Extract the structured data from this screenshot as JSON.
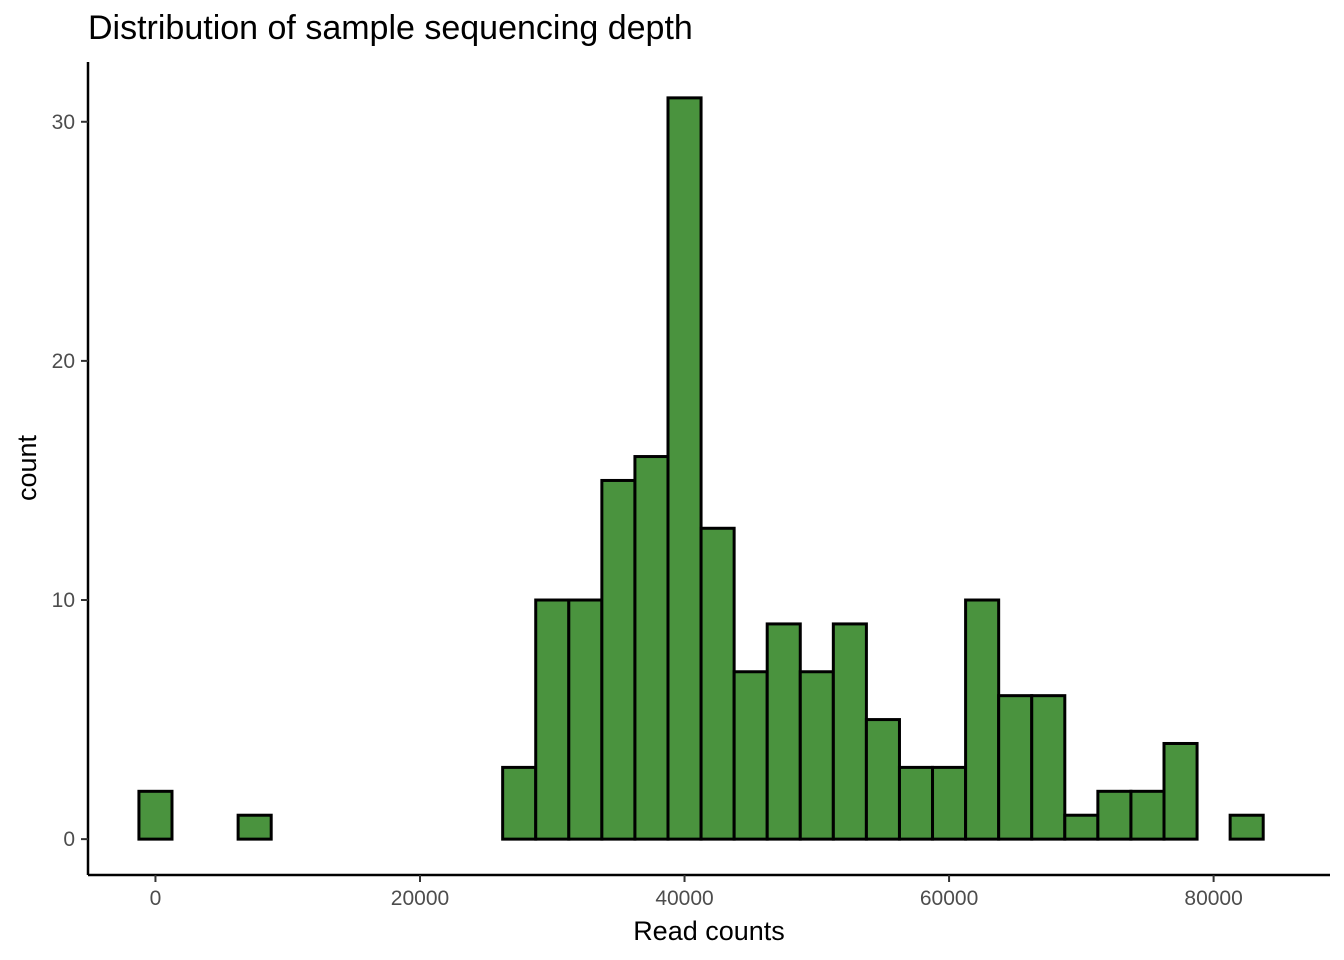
{
  "chart_data": {
    "type": "histogram",
    "title": "Distribution of sample sequencing depth",
    "xlabel": "Read counts",
    "ylabel": "count",
    "bar_color": "#4a933e",
    "bar_outline": "#000000",
    "bin_width": 2500,
    "xlim": [
      -5100,
      88800
    ],
    "ylim": [
      -1.5,
      32.5
    ],
    "grid": false,
    "legend": "none",
    "x_ticks": [
      0,
      20000,
      40000,
      60000,
      80000
    ],
    "x_tick_labels": [
      "0",
      "20000",
      "40000",
      "60000",
      "80000"
    ],
    "y_ticks": [
      0,
      10,
      20,
      30
    ],
    "y_tick_labels": [
      "0",
      "10",
      "20",
      "30"
    ],
    "bins": [
      {
        "x": 0,
        "count": 2
      },
      {
        "x": 2500,
        "count": 0
      },
      {
        "x": 5000,
        "count": 0
      },
      {
        "x": 7500,
        "count": 1
      },
      {
        "x": 10000,
        "count": 0
      },
      {
        "x": 12500,
        "count": 0
      },
      {
        "x": 15000,
        "count": 0
      },
      {
        "x": 17500,
        "count": 0
      },
      {
        "x": 20000,
        "count": 0
      },
      {
        "x": 22500,
        "count": 0
      },
      {
        "x": 25000,
        "count": 0
      },
      {
        "x": 27500,
        "count": 3
      },
      {
        "x": 30000,
        "count": 10
      },
      {
        "x": 32500,
        "count": 10
      },
      {
        "x": 35000,
        "count": 15
      },
      {
        "x": 37500,
        "count": 16
      },
      {
        "x": 40000,
        "count": 31
      },
      {
        "x": 42500,
        "count": 13
      },
      {
        "x": 45000,
        "count": 7
      },
      {
        "x": 47500,
        "count": 9
      },
      {
        "x": 50000,
        "count": 7
      },
      {
        "x": 52500,
        "count": 9
      },
      {
        "x": 55000,
        "count": 5
      },
      {
        "x": 57500,
        "count": 3
      },
      {
        "x": 60000,
        "count": 3
      },
      {
        "x": 62500,
        "count": 10
      },
      {
        "x": 65000,
        "count": 6
      },
      {
        "x": 67500,
        "count": 6
      },
      {
        "x": 70000,
        "count": 1
      },
      {
        "x": 72500,
        "count": 2
      },
      {
        "x": 75000,
        "count": 2
      },
      {
        "x": 77500,
        "count": 4
      },
      {
        "x": 80000,
        "count": 0
      },
      {
        "x": 82500,
        "count": 1
      }
    ]
  }
}
